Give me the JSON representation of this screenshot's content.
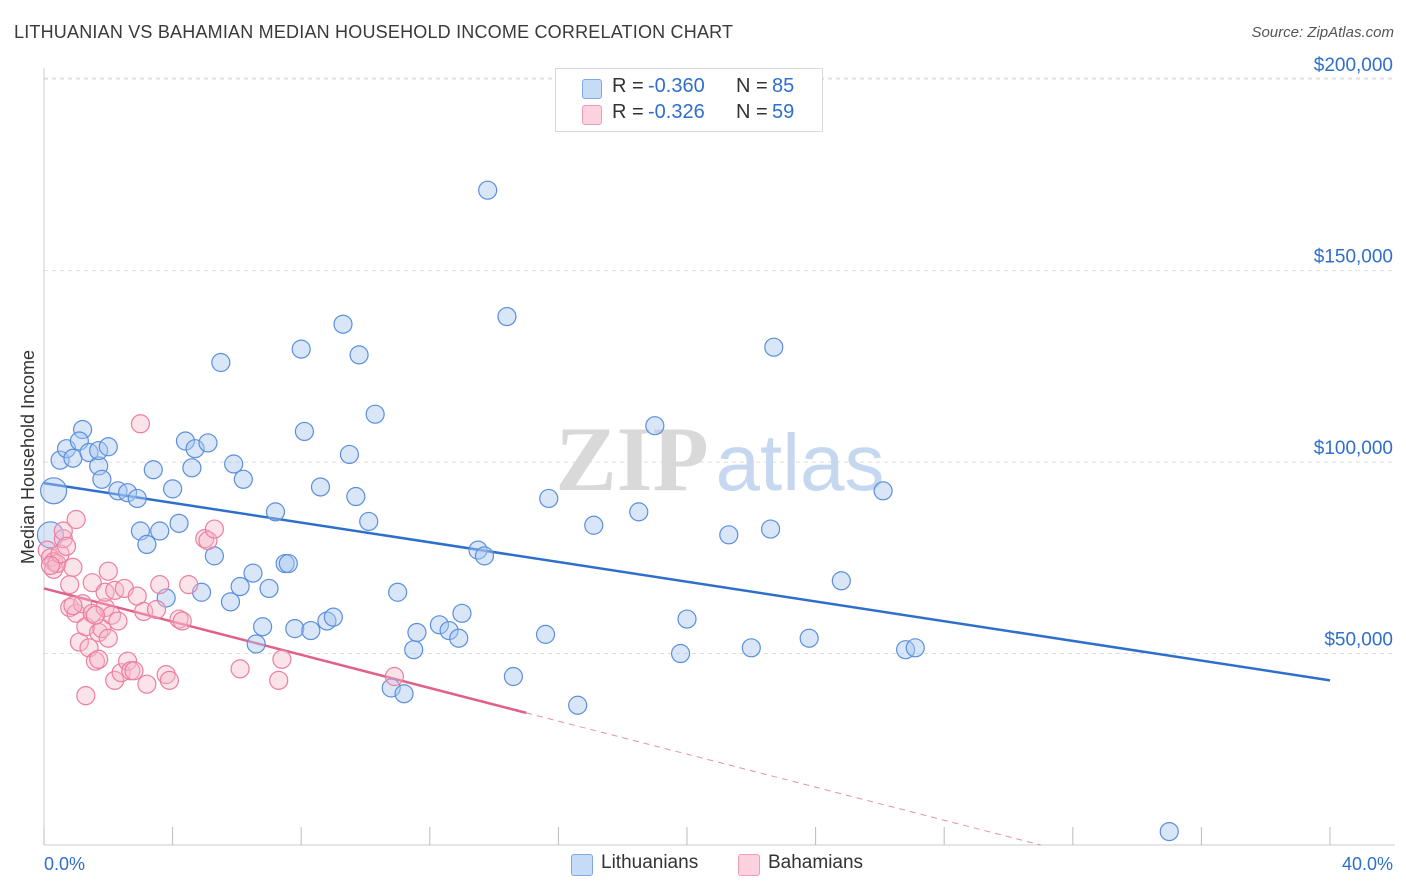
{
  "title": "LITHUANIAN VS BAHAMIAN MEDIAN HOUSEHOLD INCOME CORRELATION CHART",
  "source": "Source: ZipAtlas.com",
  "watermark": {
    "zip": "ZIP",
    "atlas": "atlas"
  },
  "legend": {
    "rows": [
      {
        "r_label": "R =",
        "r_value": "-0.360",
        "n_label": "N =",
        "n_value": "85",
        "color": "#a9c8f0"
      },
      {
        "r_label": "R =",
        "r_value": "-0.326",
        "n_label": "N =",
        "n_value": "59",
        "color": "#f5b8cb"
      }
    ]
  },
  "bottom_legend": {
    "lithuanians": "Lithuanians",
    "bahamians": "Bahamians"
  },
  "chart_data": {
    "type": "scatter",
    "xlabel": "",
    "ylabel": "Median Household Income",
    "xlim": [
      0,
      40
    ],
    "ylim": [
      0,
      205000
    ],
    "x_tick_labels": {
      "min": "0.0%",
      "max": "40.0%"
    },
    "y_ticks": [
      {
        "value": 50000,
        "label": "$50,000"
      },
      {
        "value": 100000,
        "label": "$100,000"
      },
      {
        "value": 150000,
        "label": "$150,000"
      },
      {
        "value": 200000,
        "label": "$200,000"
      }
    ],
    "grid": "horizontal dashed",
    "legend_position": "top-center",
    "colors": {
      "blue": "#5b8fdd",
      "blue_fill": "#a9c8f0",
      "blue_line": "#2f6fcc",
      "pink": "#ec7fa1",
      "pink_fill": "#f5b8cb",
      "pink_line": "#e0608a"
    },
    "series": [
      {
        "name": "Lithuanians",
        "trend": {
          "x0": 0,
          "y0": 94500,
          "x1": 40,
          "y1": 43000
        },
        "points": [
          [
            0.3,
            92500
          ],
          [
            0.5,
            100500
          ],
          [
            0.7,
            103500
          ],
          [
            0.9,
            101000
          ],
          [
            1.2,
            108500
          ],
          [
            1.1,
            105500
          ],
          [
            1.4,
            102500
          ],
          [
            1.7,
            99000
          ],
          [
            1.8,
            95500
          ],
          [
            1.7,
            103000
          ],
          [
            2.0,
            104000
          ],
          [
            2.3,
            92500
          ],
          [
            2.6,
            92000
          ],
          [
            2.9,
            90500
          ],
          [
            3.0,
            82000
          ],
          [
            3.2,
            78500
          ],
          [
            3.4,
            98000
          ],
          [
            3.6,
            82000
          ],
          [
            3.8,
            64500
          ],
          [
            4.0,
            93000
          ],
          [
            4.2,
            84000
          ],
          [
            4.4,
            105500
          ],
          [
            4.6,
            98500
          ],
          [
            4.7,
            103500
          ],
          [
            4.9,
            66000
          ],
          [
            5.1,
            105000
          ],
          [
            5.3,
            75500
          ],
          [
            5.5,
            126000
          ],
          [
            5.8,
            63500
          ],
          [
            5.9,
            99500
          ],
          [
            6.1,
            67500
          ],
          [
            6.2,
            95500
          ],
          [
            6.5,
            71000
          ],
          [
            6.6,
            52500
          ],
          [
            6.8,
            57000
          ],
          [
            7.0,
            67000
          ],
          [
            7.2,
            87000
          ],
          [
            7.5,
            73500
          ],
          [
            7.6,
            73500
          ],
          [
            7.8,
            56500
          ],
          [
            8.0,
            129500
          ],
          [
            8.1,
            108000
          ],
          [
            8.3,
            56000
          ],
          [
            8.6,
            93500
          ],
          [
            8.8,
            58500
          ],
          [
            9.0,
            59500
          ],
          [
            9.3,
            136000
          ],
          [
            9.5,
            102000
          ],
          [
            9.7,
            91000
          ],
          [
            9.8,
            128000
          ],
          [
            10.1,
            84500
          ],
          [
            10.3,
            112500
          ],
          [
            10.8,
            41000
          ],
          [
            11.0,
            66000
          ],
          [
            11.2,
            39500
          ],
          [
            11.5,
            51000
          ],
          [
            11.6,
            55500
          ],
          [
            12.3,
            57500
          ],
          [
            12.6,
            56000
          ],
          [
            12.9,
            54000
          ],
          [
            13.0,
            60500
          ],
          [
            13.5,
            77000
          ],
          [
            13.7,
            75500
          ],
          [
            13.8,
            171000
          ],
          [
            14.4,
            138000
          ],
          [
            14.6,
            44000
          ],
          [
            15.6,
            55000
          ],
          [
            15.7,
            90500
          ],
          [
            16.6,
            36500
          ],
          [
            17.1,
            83500
          ],
          [
            18.5,
            87000
          ],
          [
            19.0,
            109500
          ],
          [
            19.8,
            50000
          ],
          [
            20.0,
            59000
          ],
          [
            21.3,
            81000
          ],
          [
            22.0,
            51500
          ],
          [
            22.7,
            130000
          ],
          [
            22.6,
            82500
          ],
          [
            23.8,
            54000
          ],
          [
            24.8,
            69000
          ],
          [
            26.1,
            92500
          ],
          [
            26.8,
            51000
          ],
          [
            27.1,
            51500
          ],
          [
            35.0,
            3500
          ],
          [
            0.2,
            81000
          ]
        ]
      },
      {
        "name": "Bahamians",
        "trend": {
          "x0": 0,
          "y0": 67000,
          "x1": 15,
          "y1": 34500,
          "dash_x1": 31,
          "dash_y1": 0
        },
        "points": [
          [
            0.1,
            77000
          ],
          [
            0.2,
            75000
          ],
          [
            0.3,
            74000
          ],
          [
            0.3,
            72000
          ],
          [
            0.4,
            73500
          ],
          [
            0.5,
            76000
          ],
          [
            0.6,
            80000
          ],
          [
            0.6,
            82000
          ],
          [
            0.7,
            78000
          ],
          [
            0.8,
            68000
          ],
          [
            0.8,
            62000
          ],
          [
            0.9,
            72500
          ],
          [
            1.0,
            85000
          ],
          [
            1.0,
            60500
          ],
          [
            1.1,
            53000
          ],
          [
            1.2,
            63000
          ],
          [
            1.3,
            57000
          ],
          [
            1.3,
            39000
          ],
          [
            1.4,
            51500
          ],
          [
            1.5,
            60500
          ],
          [
            1.5,
            68500
          ],
          [
            1.6,
            48000
          ],
          [
            1.7,
            55500
          ],
          [
            1.7,
            48500
          ],
          [
            1.8,
            56500
          ],
          [
            1.9,
            62000
          ],
          [
            1.9,
            66000
          ],
          [
            2.0,
            71500
          ],
          [
            2.0,
            54000
          ],
          [
            2.1,
            60000
          ],
          [
            2.2,
            43000
          ],
          [
            2.2,
            66500
          ],
          [
            2.3,
            58500
          ],
          [
            2.4,
            45000
          ],
          [
            2.5,
            67000
          ],
          [
            2.6,
            48000
          ],
          [
            2.7,
            45500
          ],
          [
            2.8,
            45500
          ],
          [
            2.9,
            65000
          ],
          [
            3.0,
            110000
          ],
          [
            3.1,
            61000
          ],
          [
            3.2,
            42000
          ],
          [
            3.5,
            61500
          ],
          [
            3.6,
            68000
          ],
          [
            3.8,
            44500
          ],
          [
            3.9,
            43000
          ],
          [
            4.2,
            59000
          ],
          [
            4.3,
            58500
          ],
          [
            4.5,
            68000
          ],
          [
            5.0,
            80000
          ],
          [
            5.1,
            79500
          ],
          [
            5.3,
            82500
          ],
          [
            6.1,
            46000
          ],
          [
            7.3,
            43000
          ],
          [
            7.4,
            48500
          ],
          [
            10.9,
            44000
          ],
          [
            0.2,
            73000
          ],
          [
            0.9,
            62500
          ],
          [
            1.6,
            60000
          ]
        ]
      }
    ]
  }
}
